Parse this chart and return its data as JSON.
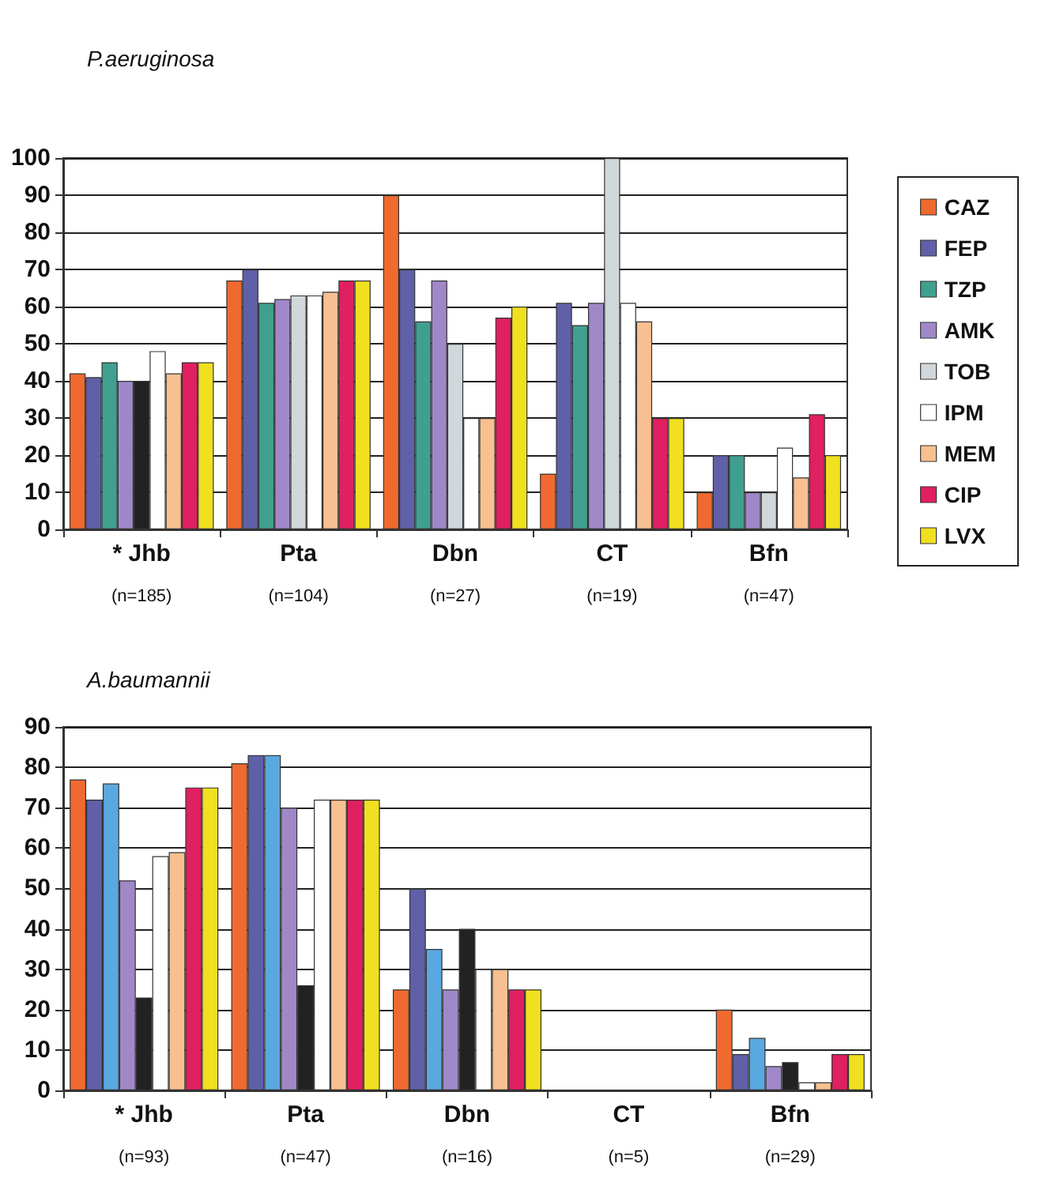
{
  "chart_data": [
    {
      "type": "bar",
      "title": "P.aeruginosa",
      "categories": [
        "* Jhb\n(n=185)",
        "Pta\n(n=104)",
        "Dbn\n(n=27)",
        "CT\n(n=19)",
        "Bfn\n(n=47)"
      ],
      "ylim": [
        0,
        100
      ],
      "yticks": [
        0,
        10,
        20,
        30,
        40,
        50,
        60,
        70,
        80,
        90,
        100
      ],
      "grid": "y",
      "legend": "right",
      "series": [
        {
          "name": "CAZ",
          "color": "#f06a30",
          "values": [
            42,
            67,
            90,
            15,
            10
          ]
        },
        {
          "name": "FEP",
          "color": "#6060a8",
          "values": [
            41,
            70,
            70,
            61,
            20
          ]
        },
        {
          "name": "TZP",
          "color": "#40a090",
          "values": [
            45,
            61,
            56,
            55,
            20
          ]
        },
        {
          "name": "AMK",
          "color": "#a088c8",
          "values": [
            40,
            62,
            67,
            61,
            10
          ]
        },
        {
          "name": "TOB",
          "color": "#d0d8dc",
          "colors": [
            "#222222",
            "#d0d8dc",
            "#d0d8dc",
            "#d0d8dc",
            "#d0d8dc"
          ],
          "values": [
            40,
            63,
            50,
            100,
            10
          ]
        },
        {
          "name": "IPM",
          "color": "#ffffff",
          "values": [
            48,
            63,
            30,
            61,
            22
          ]
        },
        {
          "name": "MEM",
          "color": "#f8c090",
          "values": [
            42,
            64,
            30,
            56,
            14
          ]
        },
        {
          "name": "CIP",
          "color": "#e02060",
          "values": [
            45,
            67,
            57,
            30,
            31
          ]
        },
        {
          "name": "LVX",
          "color": "#f0e020",
          "values": [
            45,
            67,
            60,
            30,
            20
          ]
        }
      ]
    },
    {
      "type": "bar",
      "title": "A.baumannii",
      "categories": [
        "* Jhb\n(n=93)",
        "Pta\n(n=47)",
        "Dbn\n(n=16)",
        "CT\n(n=5)",
        "Bfn\n(n=29)"
      ],
      "ylim": [
        0,
        90
      ],
      "yticks": [
        0,
        10,
        20,
        30,
        40,
        50,
        60,
        70,
        80,
        90
      ],
      "grid": "y",
      "series": [
        {
          "color": "#f06a30",
          "values": [
            77,
            81,
            25,
            0,
            20
          ]
        },
        {
          "color": "#6060a8",
          "values": [
            72,
            83,
            50,
            0,
            9
          ]
        },
        {
          "color": "#5aa8e0",
          "values": [
            76,
            83,
            35,
            0,
            13
          ]
        },
        {
          "color": "#a088c8",
          "values": [
            52,
            70,
            25,
            0,
            6
          ]
        },
        {
          "color": "#222222",
          "values": [
            23,
            26,
            40,
            0,
            7
          ]
        },
        {
          "color": "#ffffff",
          "values": [
            58,
            72,
            30,
            0,
            2
          ]
        },
        {
          "color": "#f8c090",
          "values": [
            59,
            72,
            30,
            0,
            2
          ]
        },
        {
          "color": "#e02060",
          "values": [
            75,
            72,
            25,
            0,
            9
          ]
        },
        {
          "color": "#f0e020",
          "values": [
            75,
            72,
            25,
            0,
            9
          ]
        }
      ]
    }
  ]
}
